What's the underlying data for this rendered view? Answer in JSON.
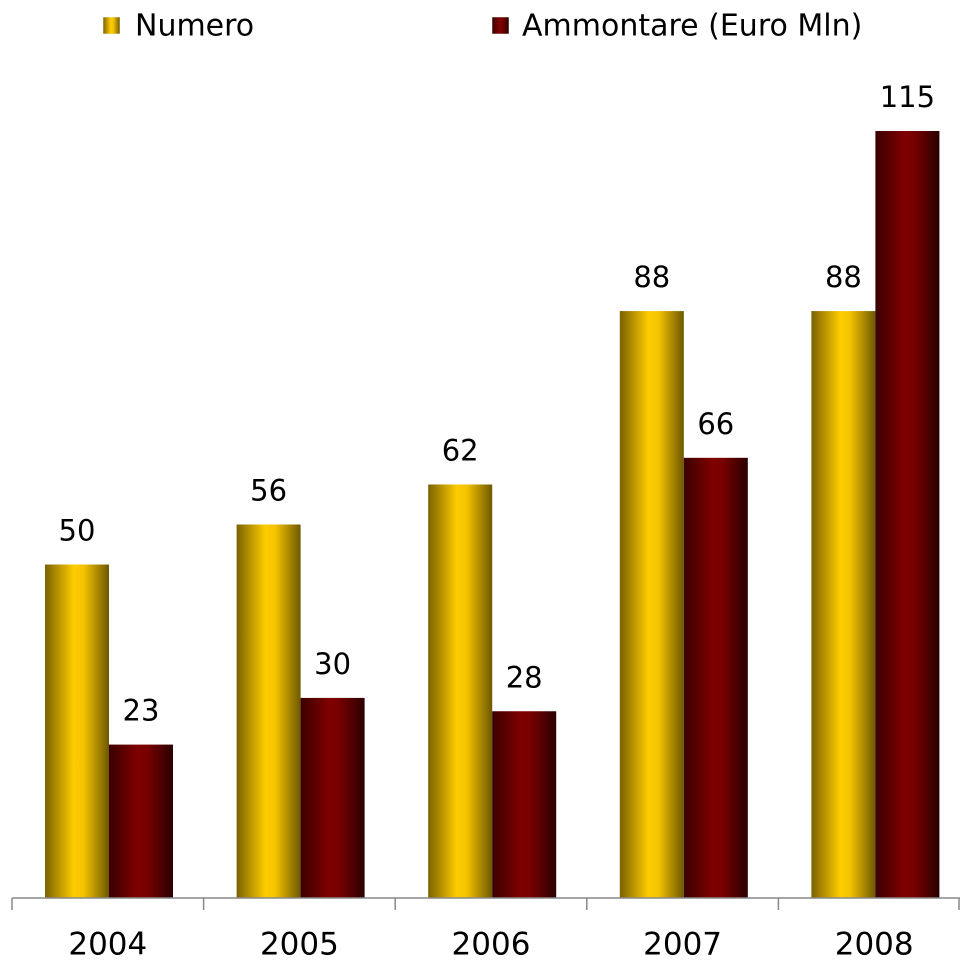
{
  "chart_data": {
    "type": "bar",
    "categories": [
      "2004",
      "2005",
      "2006",
      "2007",
      "2008"
    ],
    "series": [
      {
        "name": "Numero",
        "color": "#ffcc00",
        "values": [
          50,
          56,
          62,
          88,
          88
        ]
      },
      {
        "name": "Ammontare (Euro Mln)",
        "color": "#800000",
        "values": [
          23,
          30,
          28,
          66,
          115
        ]
      }
    ]
  }
}
